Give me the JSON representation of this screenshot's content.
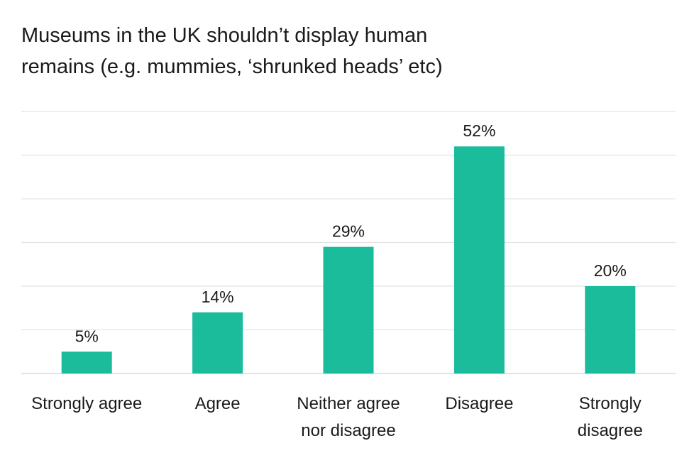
{
  "chart_data": {
    "type": "bar",
    "title": "Museums in the UK shouldn’t display human\nremains (e.g. mummies, ‘shrunked heads’ etc)",
    "categories": [
      "Strongly agree",
      "Agree",
      "Neither agree nor disagree",
      "Disagree",
      "Strongly disagree"
    ],
    "category_lines": [
      [
        "Strongly agree"
      ],
      [
        "Agree"
      ],
      [
        "Neither agree",
        "nor disagree"
      ],
      [
        "Disagree"
      ],
      [
        "Strongly",
        "disagree"
      ]
    ],
    "values": [
      5,
      14,
      29,
      52,
      20
    ],
    "data_labels": [
      "5%",
      "14%",
      "29%",
      "52%",
      "20%"
    ],
    "ylim": [
      0,
      60
    ],
    "grid": true,
    "legend": "none",
    "bar_color": "#1abc9c",
    "grid_color": "#e3e3e3"
  }
}
